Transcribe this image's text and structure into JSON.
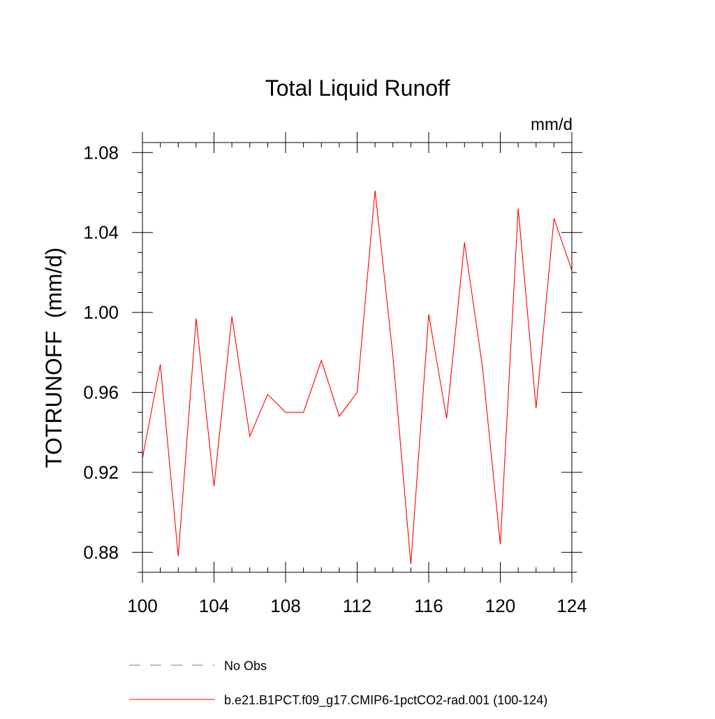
{
  "chart_data": {
    "type": "line",
    "title": "Total Liquid Runoff",
    "units": "mm/d",
    "ylabel": "TOTRUNOFF  (mm/d)",
    "xlabel": "",
    "xlim": [
      100,
      124
    ],
    "ylim": [
      0.87,
      1.085
    ],
    "x_ticks": [
      "100",
      "104",
      "108",
      "112",
      "116",
      "120",
      "124"
    ],
    "y_ticks": [
      "0.88",
      "0.92",
      "0.96",
      "1.00",
      "1.04",
      "1.08"
    ],
    "grid": false,
    "series": [
      {
        "name": "b.e21.B1PCT.f09_g17.CMIP6-1pctCO2-rad.001 (100-124)",
        "color": "#ff0000",
        "x": [
          100,
          101,
          102,
          103,
          104,
          105,
          106,
          107,
          108,
          109,
          110,
          111,
          112,
          113,
          114,
          115,
          116,
          117,
          118,
          119,
          120,
          121,
          122,
          123,
          124
        ],
        "values": [
          0.927,
          0.974,
          0.878,
          0.997,
          0.913,
          0.998,
          0.938,
          0.959,
          0.95,
          0.95,
          0.976,
          0.948,
          0.96,
          1.061,
          0.978,
          0.874,
          0.999,
          0.947,
          1.035,
          0.973,
          0.884,
          1.052,
          0.952,
          1.047,
          1.021
        ]
      }
    ],
    "legend": [
      {
        "label": "No Obs",
        "color": "#7b6fc4",
        "style": "dashed"
      },
      {
        "label": "b.e21.B1PCT.f09_g17.CMIP6-1pctCO2-rad.001 (100-124)",
        "color": "#ff0000",
        "style": "solid"
      }
    ],
    "legend_position": "bottom"
  }
}
